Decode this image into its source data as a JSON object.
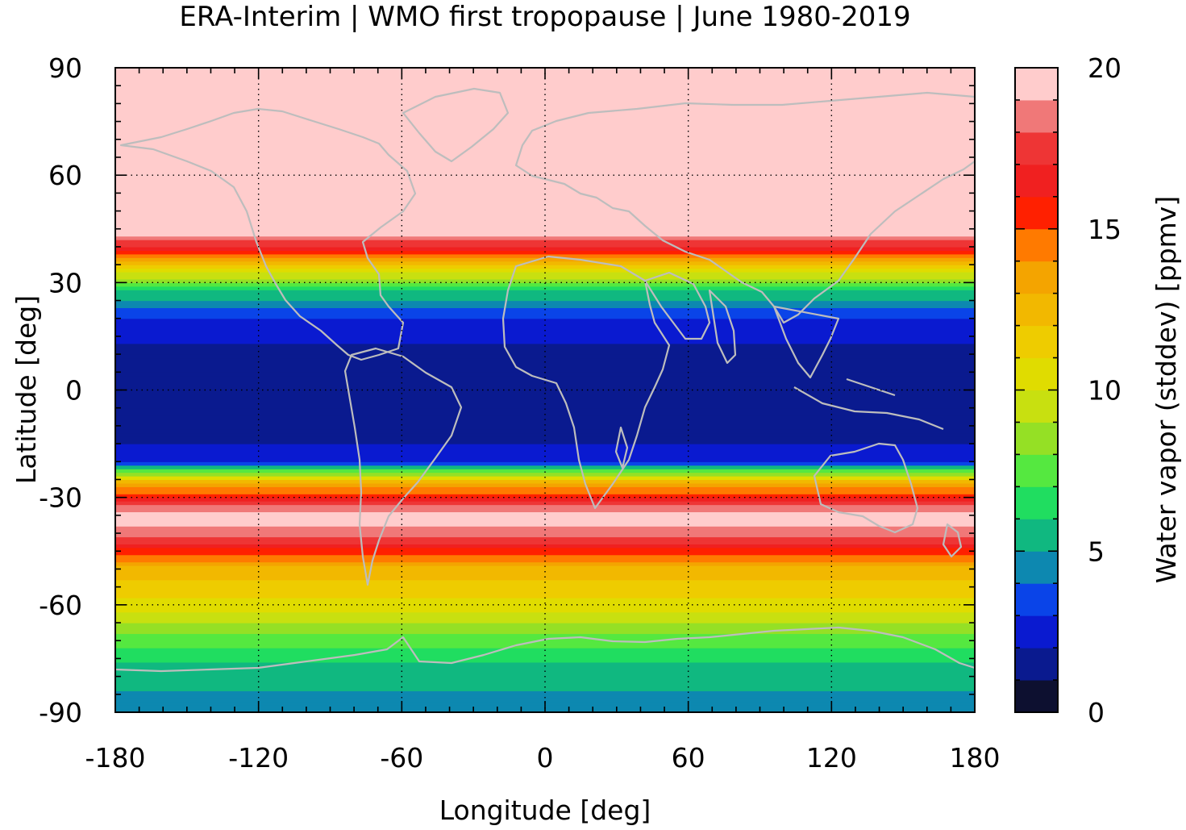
{
  "chart_data": {
    "type": "heatmap",
    "title": "ERA-Interim | WMO first tropopause | June 1980-2019",
    "xlabel": "Longitude [deg]",
    "ylabel": "Latitude [deg]",
    "colorbar_label": "Water vapor (stddev) [ppmv]",
    "xlim": [
      -180,
      180
    ],
    "ylim": [
      -90,
      90
    ],
    "clim": [
      0,
      20
    ],
    "grid": true,
    "x_ticks": [
      -180,
      -120,
      -60,
      0,
      60,
      120,
      180
    ],
    "x_tick_labels": [
      "-180",
      "-120",
      "-60",
      "0",
      "60",
      "120",
      "180"
    ],
    "y_ticks": [
      90,
      60,
      30,
      0,
      -30,
      -60,
      -90
    ],
    "y_tick_labels": [
      "90",
      "60",
      "30",
      "0",
      "-30",
      "-60",
      "-90"
    ],
    "colorbar_ticks": [
      20,
      15,
      10,
      5,
      0
    ],
    "colorbar_tick_labels": [
      "20",
      "15",
      "10",
      "5",
      "0"
    ],
    "colormap": [
      "#0d1030",
      "#0a1a8f",
      "#0a1ad0",
      "#0a44e8",
      "#0d88b0",
      "#10b880",
      "#20dd60",
      "#55e840",
      "#95e025",
      "#c8e010",
      "#e0dc00",
      "#eecc00",
      "#f2b800",
      "#f4a400",
      "#ff7a00",
      "#ff2000",
      "#f02020",
      "#ee3535",
      "#f07878",
      "#ffcccc"
    ],
    "zonal_profile_stddev_ppmv": [
      {
        "lat": -90,
        "value": 4.5
      },
      {
        "lat": -78,
        "value": 5.5
      },
      {
        "lat": -70,
        "value": 7.5
      },
      {
        "lat": -60,
        "value": 10.5
      },
      {
        "lat": -50,
        "value": 12.5
      },
      {
        "lat": -42,
        "value": 17.5
      },
      {
        "lat": -35,
        "value": 20
      },
      {
        "lat": -26,
        "value": 13
      },
      {
        "lat": -20,
        "value": 3
      },
      {
        "lat": -10,
        "value": 1
      },
      {
        "lat": 0,
        "value": 1
      },
      {
        "lat": 10,
        "value": 1.5
      },
      {
        "lat": 20,
        "value": 3
      },
      {
        "lat": 28,
        "value": 6
      },
      {
        "lat": 35,
        "value": 12
      },
      {
        "lat": 40,
        "value": 17
      },
      {
        "lat": 45,
        "value": 20
      },
      {
        "lat": 90,
        "value": 20
      }
    ]
  }
}
